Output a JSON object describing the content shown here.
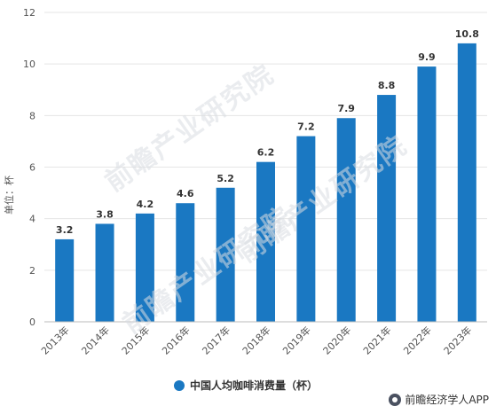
{
  "chart_data": {
    "type": "bar",
    "categories": [
      "2013年",
      "2014年",
      "2015年",
      "2016年",
      "2017年",
      "2018年",
      "2019年",
      "2020年",
      "2021年",
      "2022年",
      "2023年"
    ],
    "values": [
      3.2,
      3.8,
      4.2,
      4.6,
      5.2,
      6.2,
      7.2,
      7.9,
      8.8,
      9.9,
      10.8
    ],
    "value_labels": [
      "3.2",
      "3.8",
      "4.2",
      "4.6",
      "5.2",
      "6.2",
      "7.2",
      "7.9",
      "8.8",
      "9.9",
      "10.8"
    ],
    "series_name": "中国人均咖啡消费量（杯）",
    "ylabel": "单位：杯",
    "yticks": [
      0,
      2,
      4,
      6,
      8,
      10,
      12
    ],
    "ylim": [
      0,
      12
    ],
    "grid": true,
    "legend_position": "bottom",
    "bar_color": "#1a78c2"
  },
  "source": "前瞻经济学人APP",
  "watermark": "前瞻产业研究院"
}
